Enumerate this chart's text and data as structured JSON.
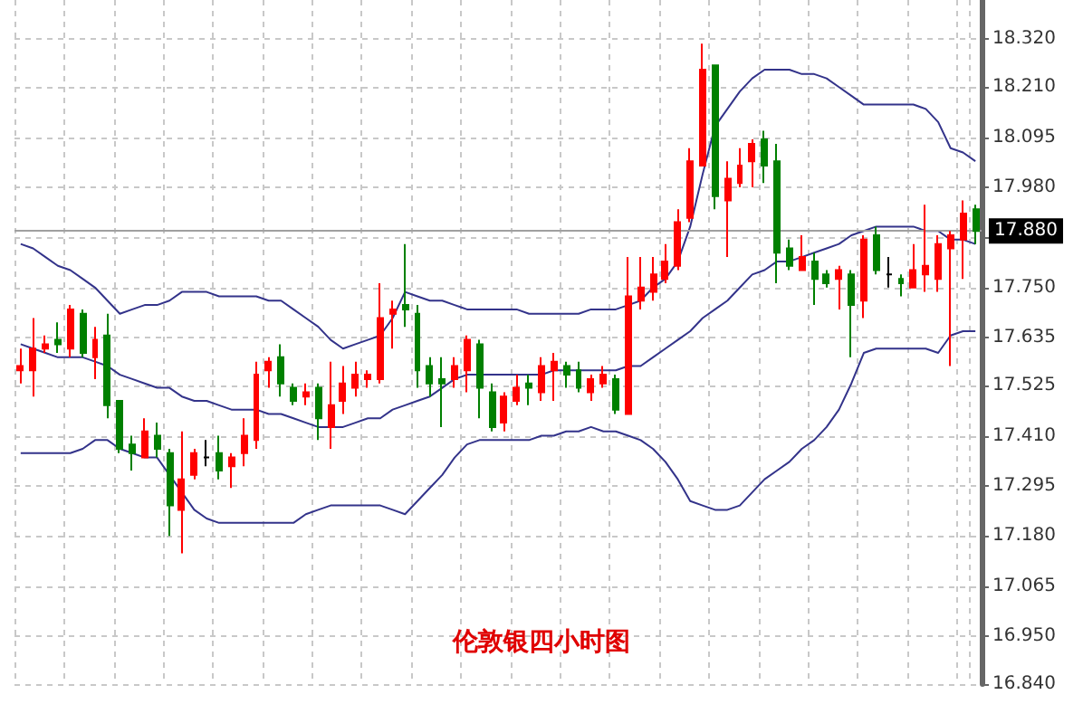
{
  "chart_data": {
    "type": "candlestick",
    "title": "伦敦银四小时图",
    "categories": [
      null,
      null,
      null,
      null,
      null,
      null,
      null,
      null,
      null,
      null,
      null,
      null,
      null,
      null,
      null,
      null,
      null,
      null,
      null,
      null,
      null,
      null,
      null,
      null,
      null,
      null,
      null,
      null,
      null,
      null,
      null,
      null,
      null,
      null,
      null,
      null,
      null,
      null,
      null,
      null,
      null,
      null,
      null,
      null,
      null,
      null,
      null,
      null,
      null,
      null,
      null,
      null,
      null,
      null,
      null,
      null,
      null,
      null,
      null,
      null,
      null,
      null,
      null,
      null,
      null,
      null,
      null,
      null,
      null,
      null,
      null,
      null,
      null,
      null,
      null,
      null,
      null,
      null
    ],
    "series": [
      {
        "ohlc": [
          [
            17.56,
            17.61,
            17.53,
            17.57
          ],
          [
            17.56,
            17.68,
            17.5,
            17.61
          ],
          [
            17.61,
            17.64,
            17.6,
            17.62
          ],
          [
            17.63,
            17.67,
            17.6,
            17.62
          ],
          [
            17.61,
            17.71,
            17.59,
            17.7
          ],
          [
            17.69,
            17.7,
            17.59,
            17.6
          ],
          [
            17.59,
            17.66,
            17.54,
            17.63
          ],
          [
            17.64,
            17.69,
            17.45,
            17.48
          ],
          [
            17.49,
            17.49,
            17.37,
            17.38
          ],
          [
            17.39,
            17.41,
            17.33,
            17.37
          ],
          [
            17.36,
            17.45,
            17.36,
            17.42
          ],
          [
            17.41,
            17.44,
            17.36,
            17.38
          ],
          [
            17.37,
            17.38,
            17.18,
            17.25
          ],
          [
            17.24,
            17.42,
            17.14,
            17.31
          ],
          [
            17.32,
            17.38,
            17.31,
            17.37
          ],
          [
            17.36,
            17.4,
            17.34,
            17.36
          ],
          [
            17.37,
            17.41,
            17.31,
            17.33
          ],
          [
            17.34,
            17.37,
            17.29,
            17.36
          ],
          [
            17.37,
            17.45,
            17.34,
            17.41
          ],
          [
            17.4,
            17.58,
            17.38,
            17.55
          ],
          [
            17.56,
            17.59,
            17.52,
            17.58
          ],
          [
            17.59,
            17.62,
            17.5,
            17.53
          ],
          [
            17.52,
            17.53,
            17.48,
            17.49
          ],
          [
            17.5,
            17.53,
            17.48,
            17.51
          ],
          [
            17.52,
            17.53,
            17.4,
            17.45
          ],
          [
            17.43,
            17.58,
            17.38,
            17.48
          ],
          [
            17.49,
            17.57,
            17.46,
            17.53
          ],
          [
            17.52,
            17.58,
            17.5,
            17.55
          ],
          [
            17.54,
            17.56,
            17.52,
            17.55
          ],
          [
            17.54,
            17.76,
            17.53,
            17.68
          ],
          [
            17.69,
            17.72,
            17.61,
            17.7
          ],
          [
            17.71,
            17.85,
            17.66,
            17.7
          ],
          [
            17.69,
            17.71,
            17.52,
            17.56
          ],
          [
            17.57,
            17.59,
            17.5,
            17.53
          ],
          [
            17.54,
            17.59,
            17.43,
            17.53
          ],
          [
            17.54,
            17.59,
            17.52,
            17.57
          ],
          [
            17.56,
            17.64,
            17.51,
            17.63
          ],
          [
            17.62,
            17.63,
            17.45,
            17.52
          ],
          [
            17.51,
            17.53,
            17.42,
            17.43
          ],
          [
            17.44,
            17.51,
            17.42,
            17.5
          ],
          [
            17.49,
            17.55,
            17.48,
            17.52
          ],
          [
            17.53,
            17.55,
            17.48,
            17.52
          ],
          [
            17.51,
            17.59,
            17.49,
            17.57
          ],
          [
            17.56,
            17.6,
            17.49,
            17.58
          ],
          [
            17.57,
            17.58,
            17.52,
            17.55
          ],
          [
            17.56,
            17.58,
            17.51,
            17.52
          ],
          [
            17.51,
            17.55,
            17.49,
            17.54
          ],
          [
            17.53,
            17.57,
            17.52,
            17.55
          ],
          [
            17.54,
            17.55,
            17.46,
            17.47
          ],
          [
            17.46,
            17.82,
            17.46,
            17.73
          ],
          [
            17.72,
            17.82,
            17.7,
            17.75
          ],
          [
            17.74,
            17.82,
            17.72,
            17.78
          ],
          [
            17.77,
            17.85,
            17.76,
            17.81
          ],
          [
            17.8,
            17.93,
            17.79,
            17.9
          ],
          [
            17.91,
            18.07,
            17.9,
            18.04
          ],
          [
            18.03,
            18.31,
            18.03,
            18.25
          ],
          [
            18.26,
            18.26,
            17.93,
            17.96
          ],
          [
            17.95,
            18.04,
            17.82,
            18.0
          ],
          [
            17.99,
            18.07,
            17.98,
            18.03
          ],
          [
            18.04,
            18.09,
            17.98,
            18.08
          ],
          [
            18.09,
            18.11,
            17.99,
            18.03
          ],
          [
            18.04,
            18.08,
            17.76,
            17.83
          ],
          [
            17.84,
            17.86,
            17.79,
            17.8
          ],
          [
            17.79,
            17.87,
            17.79,
            17.82
          ],
          [
            17.81,
            17.83,
            17.71,
            17.77
          ],
          [
            17.78,
            17.79,
            17.75,
            17.76
          ],
          [
            17.77,
            17.8,
            17.7,
            17.79
          ],
          [
            17.78,
            17.79,
            17.59,
            17.71
          ],
          [
            17.72,
            17.87,
            17.68,
            17.86
          ],
          [
            17.87,
            17.89,
            17.78,
            17.79
          ],
          [
            17.78,
            17.82,
            17.75,
            17.78
          ],
          [
            17.77,
            17.78,
            17.73,
            17.76
          ],
          [
            17.75,
            17.85,
            17.75,
            17.79
          ],
          [
            17.78,
            17.94,
            17.74,
            17.8
          ],
          [
            17.77,
            17.87,
            17.74,
            17.85
          ],
          [
            17.84,
            17.88,
            17.57,
            17.87
          ],
          [
            17.86,
            17.95,
            17.77,
            17.92
          ],
          [
            17.93,
            17.94,
            17.85,
            17.88
          ]
        ],
        "colors": [
          "#ff0000",
          "#ff0000",
          "#ff0000",
          "#008000",
          "#ff0000",
          "#008000",
          "#ff0000",
          "#008000",
          "#008000",
          "#008000",
          "#ff0000",
          "#008000",
          "#008000",
          "#ff0000",
          "#ff0000",
          "#000000",
          "#008000",
          "#ff0000",
          "#ff0000",
          "#ff0000",
          "#ff0000",
          "#008000",
          "#008000",
          "#ff0000",
          "#008000",
          "#ff0000",
          "#ff0000",
          "#ff0000",
          "#ff0000",
          "#ff0000",
          "#ff0000",
          "#008000",
          "#008000",
          "#008000",
          "#008000",
          "#ff0000",
          "#ff0000",
          "#008000",
          "#008000",
          "#ff0000",
          "#ff0000",
          "#008000",
          "#ff0000",
          "#ff0000",
          "#008000",
          "#008000",
          "#ff0000",
          "#ff0000",
          "#008000",
          "#ff0000",
          "#ff0000",
          "#ff0000",
          "#ff0000",
          "#ff0000",
          "#ff0000",
          "#ff0000",
          "#008000",
          "#ff0000",
          "#ff0000",
          "#ff0000",
          "#008000",
          "#008000",
          "#008000",
          "#ff0000",
          "#008000",
          "#008000",
          "#ff0000",
          "#008000",
          "#ff0000",
          "#008000",
          "#000000",
          "#008000",
          "#ff0000",
          "#ff0000",
          "#ff0000",
          "#ff0000",
          "#ff0000",
          "#008000"
        ]
      },
      {
        "type": "line",
        "color": "#33338a",
        "values": [
          17.85,
          17.84,
          17.82,
          17.8,
          17.79,
          17.77,
          17.75,
          17.72,
          17.69,
          17.7,
          17.71,
          17.71,
          17.72,
          17.74,
          17.74,
          17.74,
          17.73,
          17.73,
          17.73,
          17.73,
          17.72,
          17.72,
          17.7,
          17.68,
          17.66,
          17.63,
          17.61,
          17.62,
          17.63,
          17.64,
          17.68,
          17.74,
          17.73,
          17.72,
          17.72,
          17.71,
          17.7,
          17.7,
          17.7,
          17.7,
          17.7,
          17.69,
          17.69,
          17.69,
          17.69,
          17.69,
          17.7,
          17.7,
          17.7,
          17.71,
          17.72,
          17.75,
          17.77,
          17.81,
          17.89,
          18.01,
          18.12,
          18.16,
          18.2,
          18.23,
          18.25,
          18.25,
          18.25,
          18.24,
          18.24,
          18.23,
          18.21,
          18.19,
          18.17,
          18.17,
          18.17,
          18.17,
          18.17,
          18.16,
          18.13,
          18.07,
          18.06,
          18.04
        ]
      },
      {
        "type": "line",
        "color": "#33338a",
        "values": [
          17.62,
          17.61,
          17.6,
          17.59,
          17.59,
          17.59,
          17.58,
          17.57,
          17.55,
          17.54,
          17.53,
          17.52,
          17.52,
          17.5,
          17.49,
          17.49,
          17.48,
          17.47,
          17.47,
          17.47,
          17.46,
          17.46,
          17.45,
          17.44,
          17.43,
          17.43,
          17.43,
          17.44,
          17.45,
          17.45,
          17.47,
          17.48,
          17.49,
          17.5,
          17.52,
          17.54,
          17.55,
          17.55,
          17.55,
          17.55,
          17.55,
          17.55,
          17.55,
          17.56,
          17.56,
          17.56,
          17.56,
          17.56,
          17.56,
          17.57,
          17.57,
          17.59,
          17.61,
          17.63,
          17.65,
          17.68,
          17.7,
          17.72,
          17.75,
          17.78,
          17.79,
          17.81,
          17.81,
          17.82,
          17.83,
          17.84,
          17.85,
          17.87,
          17.88,
          17.89,
          17.89,
          17.89,
          17.89,
          17.88,
          17.88,
          17.86,
          17.86,
          17.85
        ]
      },
      {
        "type": "line",
        "color": "#33338a",
        "values": [
          17.37,
          17.37,
          17.37,
          17.37,
          17.37,
          17.38,
          17.4,
          17.4,
          17.38,
          17.37,
          17.36,
          17.36,
          17.32,
          17.28,
          17.24,
          17.22,
          17.21,
          17.21,
          17.21,
          17.21,
          17.21,
          17.21,
          17.21,
          17.23,
          17.24,
          17.25,
          17.25,
          17.25,
          17.25,
          17.25,
          17.24,
          17.23,
          17.26,
          17.29,
          17.32,
          17.36,
          17.39,
          17.4,
          17.4,
          17.4,
          17.4,
          17.4,
          17.41,
          17.41,
          17.42,
          17.42,
          17.43,
          17.42,
          17.42,
          17.41,
          17.4,
          17.38,
          17.35,
          17.31,
          17.26,
          17.25,
          17.24,
          17.24,
          17.25,
          17.28,
          17.31,
          17.33,
          17.35,
          17.38,
          17.4,
          17.43,
          17.47,
          17.53,
          17.6,
          17.61,
          17.61,
          17.61,
          17.61,
          17.61,
          17.6,
          17.64,
          17.65,
          17.65
        ]
      }
    ],
    "ylim": [
      16.84,
      18.41
    ],
    "yticks": [
      {
        "value": 16.84,
        "label": "16.840"
      },
      {
        "value": 16.95,
        "label": "16.950"
      },
      17.065,
      {
        "value": 17.18,
        "label": "17.180"
      },
      17.295,
      {
        "value": 17.41,
        "label": "17.410"
      },
      17.525,
      17.635,
      {
        "value": 17.75,
        "label": "17.750"
      },
      {
        "value": 17.865,
        "label": null
      },
      {
        "value": 17.98,
        "label": "17.980"
      },
      18.095,
      {
        "value": 18.21,
        "label": "18.210"
      },
      {
        "value": 18.32,
        "label": "18.320"
      }
    ],
    "ref_lines": [
      {
        "axis": "y",
        "value": 17.88,
        "label": "17.880",
        "color": "#a0a0a0"
      }
    ],
    "grid": true,
    "tick_labels": "y",
    "line_style": "solid"
  }
}
